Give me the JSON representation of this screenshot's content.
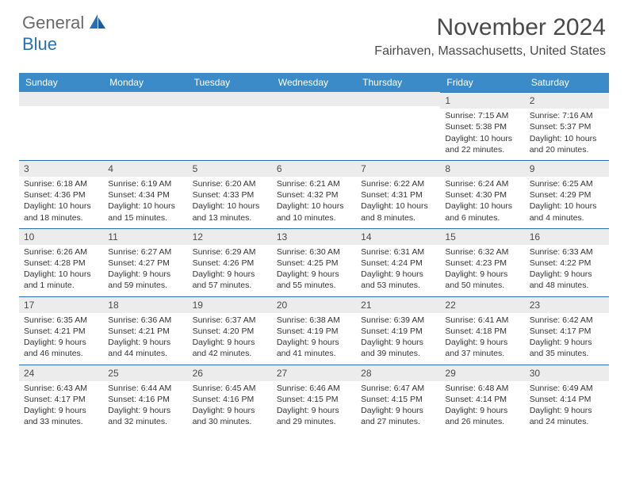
{
  "logo": {
    "line1": "General",
    "line2": "Blue"
  },
  "header": {
    "month_title": "November 2024",
    "location": "Fairhaven, Massachusetts, United States"
  },
  "weekdays": [
    "Sunday",
    "Monday",
    "Tuesday",
    "Wednesday",
    "Thursday",
    "Friday",
    "Saturday"
  ],
  "colors": {
    "header_bar": "#3b8bc9",
    "accent_line": "#2a6fb5",
    "daynum_bg": "#ececec",
    "text": "#333333",
    "title_text": "#4a4a4a",
    "logo_gray": "#6a6a6a",
    "logo_blue": "#2a6fb5"
  },
  "weeks": [
    [
      null,
      null,
      null,
      null,
      null,
      {
        "num": "1",
        "sunrise": "Sunrise: 7:15 AM",
        "sunset": "Sunset: 5:38 PM",
        "daylight": "Daylight: 10 hours and 22 minutes."
      },
      {
        "num": "2",
        "sunrise": "Sunrise: 7:16 AM",
        "sunset": "Sunset: 5:37 PM",
        "daylight": "Daylight: 10 hours and 20 minutes."
      }
    ],
    [
      {
        "num": "3",
        "sunrise": "Sunrise: 6:18 AM",
        "sunset": "Sunset: 4:36 PM",
        "daylight": "Daylight: 10 hours and 18 minutes."
      },
      {
        "num": "4",
        "sunrise": "Sunrise: 6:19 AM",
        "sunset": "Sunset: 4:34 PM",
        "daylight": "Daylight: 10 hours and 15 minutes."
      },
      {
        "num": "5",
        "sunrise": "Sunrise: 6:20 AM",
        "sunset": "Sunset: 4:33 PM",
        "daylight": "Daylight: 10 hours and 13 minutes."
      },
      {
        "num": "6",
        "sunrise": "Sunrise: 6:21 AM",
        "sunset": "Sunset: 4:32 PM",
        "daylight": "Daylight: 10 hours and 10 minutes."
      },
      {
        "num": "7",
        "sunrise": "Sunrise: 6:22 AM",
        "sunset": "Sunset: 4:31 PM",
        "daylight": "Daylight: 10 hours and 8 minutes."
      },
      {
        "num": "8",
        "sunrise": "Sunrise: 6:24 AM",
        "sunset": "Sunset: 4:30 PM",
        "daylight": "Daylight: 10 hours and 6 minutes."
      },
      {
        "num": "9",
        "sunrise": "Sunrise: 6:25 AM",
        "sunset": "Sunset: 4:29 PM",
        "daylight": "Daylight: 10 hours and 4 minutes."
      }
    ],
    [
      {
        "num": "10",
        "sunrise": "Sunrise: 6:26 AM",
        "sunset": "Sunset: 4:28 PM",
        "daylight": "Daylight: 10 hours and 1 minute."
      },
      {
        "num": "11",
        "sunrise": "Sunrise: 6:27 AM",
        "sunset": "Sunset: 4:27 PM",
        "daylight": "Daylight: 9 hours and 59 minutes."
      },
      {
        "num": "12",
        "sunrise": "Sunrise: 6:29 AM",
        "sunset": "Sunset: 4:26 PM",
        "daylight": "Daylight: 9 hours and 57 minutes."
      },
      {
        "num": "13",
        "sunrise": "Sunrise: 6:30 AM",
        "sunset": "Sunset: 4:25 PM",
        "daylight": "Daylight: 9 hours and 55 minutes."
      },
      {
        "num": "14",
        "sunrise": "Sunrise: 6:31 AM",
        "sunset": "Sunset: 4:24 PM",
        "daylight": "Daylight: 9 hours and 53 minutes."
      },
      {
        "num": "15",
        "sunrise": "Sunrise: 6:32 AM",
        "sunset": "Sunset: 4:23 PM",
        "daylight": "Daylight: 9 hours and 50 minutes."
      },
      {
        "num": "16",
        "sunrise": "Sunrise: 6:33 AM",
        "sunset": "Sunset: 4:22 PM",
        "daylight": "Daylight: 9 hours and 48 minutes."
      }
    ],
    [
      {
        "num": "17",
        "sunrise": "Sunrise: 6:35 AM",
        "sunset": "Sunset: 4:21 PM",
        "daylight": "Daylight: 9 hours and 46 minutes."
      },
      {
        "num": "18",
        "sunrise": "Sunrise: 6:36 AM",
        "sunset": "Sunset: 4:21 PM",
        "daylight": "Daylight: 9 hours and 44 minutes."
      },
      {
        "num": "19",
        "sunrise": "Sunrise: 6:37 AM",
        "sunset": "Sunset: 4:20 PM",
        "daylight": "Daylight: 9 hours and 42 minutes."
      },
      {
        "num": "20",
        "sunrise": "Sunrise: 6:38 AM",
        "sunset": "Sunset: 4:19 PM",
        "daylight": "Daylight: 9 hours and 41 minutes."
      },
      {
        "num": "21",
        "sunrise": "Sunrise: 6:39 AM",
        "sunset": "Sunset: 4:19 PM",
        "daylight": "Daylight: 9 hours and 39 minutes."
      },
      {
        "num": "22",
        "sunrise": "Sunrise: 6:41 AM",
        "sunset": "Sunset: 4:18 PM",
        "daylight": "Daylight: 9 hours and 37 minutes."
      },
      {
        "num": "23",
        "sunrise": "Sunrise: 6:42 AM",
        "sunset": "Sunset: 4:17 PM",
        "daylight": "Daylight: 9 hours and 35 minutes."
      }
    ],
    [
      {
        "num": "24",
        "sunrise": "Sunrise: 6:43 AM",
        "sunset": "Sunset: 4:17 PM",
        "daylight": "Daylight: 9 hours and 33 minutes."
      },
      {
        "num": "25",
        "sunrise": "Sunrise: 6:44 AM",
        "sunset": "Sunset: 4:16 PM",
        "daylight": "Daylight: 9 hours and 32 minutes."
      },
      {
        "num": "26",
        "sunrise": "Sunrise: 6:45 AM",
        "sunset": "Sunset: 4:16 PM",
        "daylight": "Daylight: 9 hours and 30 minutes."
      },
      {
        "num": "27",
        "sunrise": "Sunrise: 6:46 AM",
        "sunset": "Sunset: 4:15 PM",
        "daylight": "Daylight: 9 hours and 29 minutes."
      },
      {
        "num": "28",
        "sunrise": "Sunrise: 6:47 AM",
        "sunset": "Sunset: 4:15 PM",
        "daylight": "Daylight: 9 hours and 27 minutes."
      },
      {
        "num": "29",
        "sunrise": "Sunrise: 6:48 AM",
        "sunset": "Sunset: 4:14 PM",
        "daylight": "Daylight: 9 hours and 26 minutes."
      },
      {
        "num": "30",
        "sunrise": "Sunrise: 6:49 AM",
        "sunset": "Sunset: 4:14 PM",
        "daylight": "Daylight: 9 hours and 24 minutes."
      }
    ]
  ]
}
